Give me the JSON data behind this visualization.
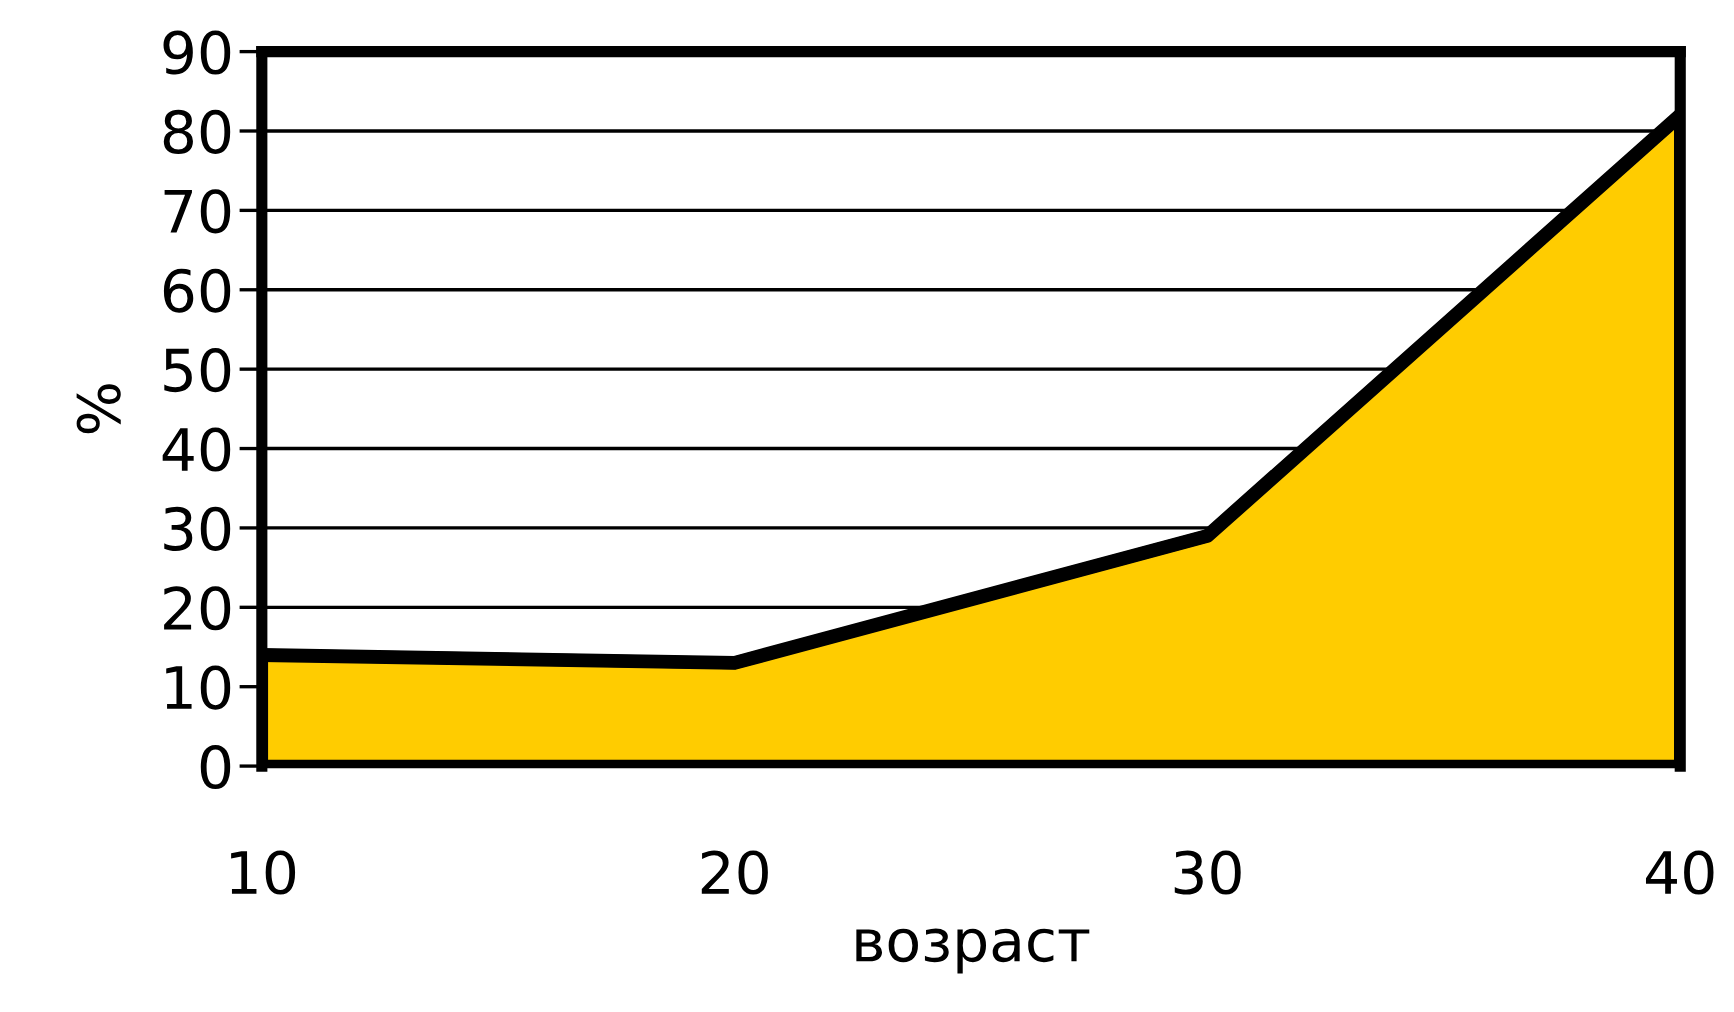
{
  "chart_data": {
    "type": "area",
    "xlabel": "возраст",
    "ylabel": "%",
    "x": [
      10,
      20,
      30,
      40
    ],
    "xlim": [
      10,
      40
    ],
    "xticks": [
      10,
      20,
      30,
      40
    ],
    "ylim": [
      0,
      90
    ],
    "yticks": [
      0,
      10,
      20,
      30,
      40,
      50,
      60,
      70,
      80,
      90
    ],
    "grid": "y",
    "series": [
      {
        "color": "#ffcc00",
        "values": [
          14,
          13,
          29,
          82
        ]
      }
    ]
  }
}
